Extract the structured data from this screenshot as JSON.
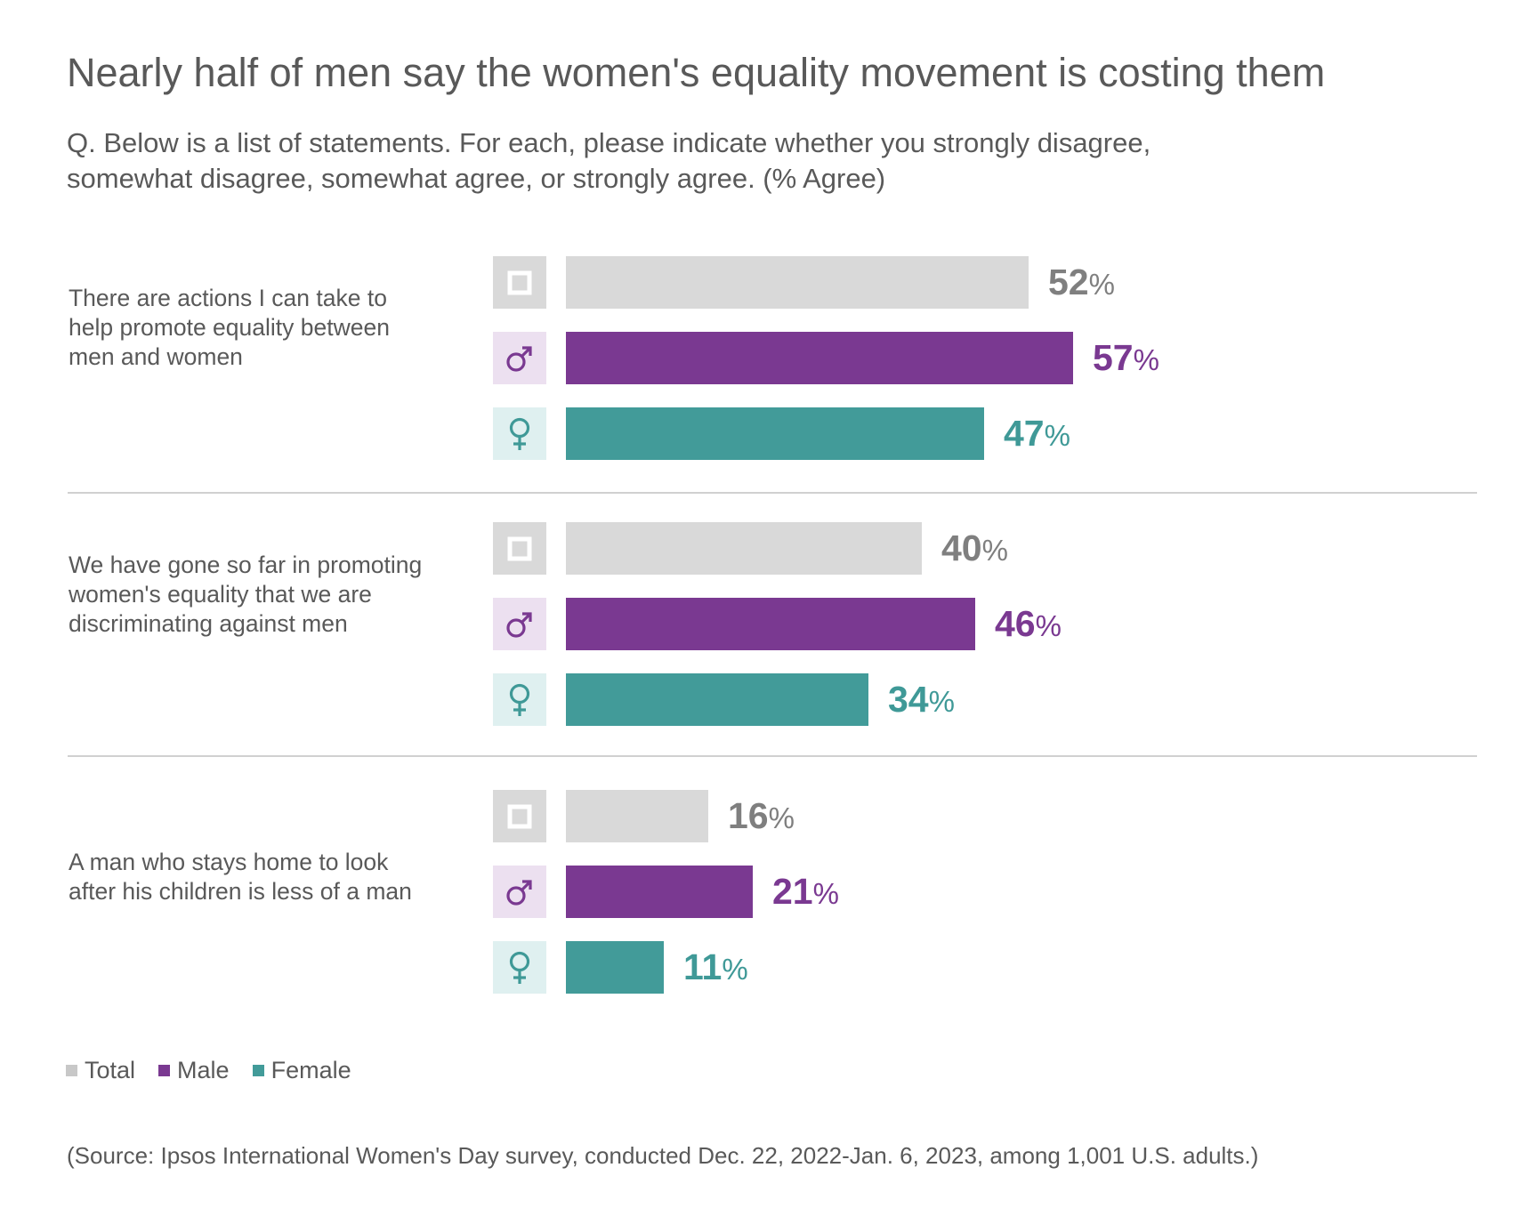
{
  "chart_data": {
    "type": "bar",
    "orientation": "horizontal",
    "title": "Nearly half of men say the women's equality movement is costing them",
    "subtitle_lines": [
      "Q. Below is a list of statements. For each, please indicate whether you strongly disagree,",
      "somewhat disagree, somewhat agree, or strongly agree. (% Agree)"
    ],
    "categories": [
      [
        "There are actions I can take to",
        "help promote equality between",
        "men and women"
      ],
      [
        "We have gone so far in promoting",
        "women's equality that we are",
        "discriminating against men"
      ],
      [
        "A man who stays home to look",
        "after his children is less of a man"
      ]
    ],
    "series": [
      {
        "name": "Total",
        "values": [
          52,
          40,
          16
        ],
        "color": "#d9d9d9",
        "label_color": "#7f7f7f",
        "icon": "square-icon",
        "icon_bg": "#d9d9d9"
      },
      {
        "name": "Male",
        "values": [
          57,
          46,
          21
        ],
        "color": "#7a3991",
        "label_color": "#7a3991",
        "icon": "male-symbol-icon",
        "icon_bg": "#ece0f0"
      },
      {
        "name": "Female",
        "values": [
          47,
          34,
          11
        ],
        "color": "#429b99",
        "label_color": "#3f9997",
        "icon": "female-symbol-icon",
        "icon_bg": "#dff0f0"
      }
    ],
    "value_suffix": "%",
    "xlim": [
      0,
      100
    ],
    "grid": false,
    "legend_position": "bottom-left",
    "source": "(Source: Ipsos International Women's Day survey, conducted Dec. 22, 2022-Jan. 6, 2023, among 1,001 U.S. adults.)"
  }
}
